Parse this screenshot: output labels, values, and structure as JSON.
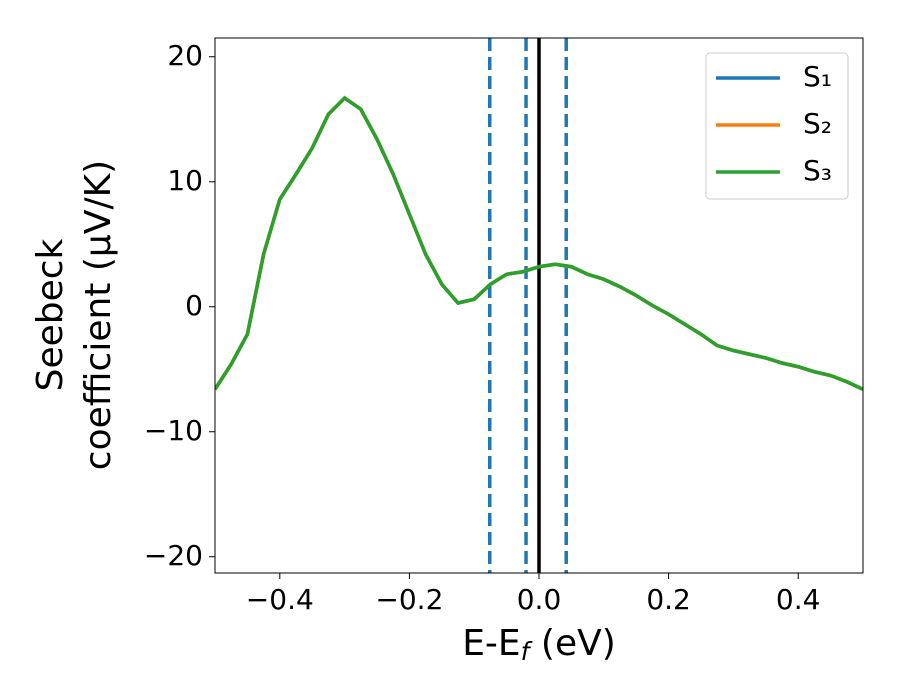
{
  "chart_data": {
    "type": "line",
    "xlabel": [
      "E-E",
      "f",
      " (eV)"
    ],
    "ylabel": [
      "Seebeck",
      "coefficient  (μV/K)"
    ],
    "x": [
      -0.5,
      -0.475,
      -0.45,
      -0.425,
      -0.4,
      -0.375,
      -0.35,
      -0.325,
      -0.3,
      -0.275,
      -0.25,
      -0.225,
      -0.2,
      -0.175,
      -0.15,
      -0.125,
      -0.1,
      -0.075,
      -0.05,
      -0.025,
      0,
      0.025,
      0.05,
      0.075,
      0.1,
      0.125,
      0.15,
      0.175,
      0.2,
      0.225,
      0.25,
      0.275,
      0.3,
      0.325,
      0.35,
      0.375,
      0.4,
      0.425,
      0.45,
      0.475,
      0.5
    ],
    "series": [
      {
        "name": "S₁",
        "color": "#1f77b4",
        "values": [
          -6.6,
          -4.6,
          -2.2,
          4.2,
          8.6,
          10.6,
          12.7,
          15.4,
          16.7,
          15.8,
          13.4,
          10.6,
          7.4,
          4.2,
          1.8,
          0.3,
          0.6,
          1.8,
          2.6,
          2.8,
          3.2,
          3.4,
          3.2,
          2.6,
          2.2,
          1.6,
          0.9,
          0.1,
          -0.6,
          -1.4,
          -2.2,
          -3.1,
          -3.5,
          -3.8,
          -4.1,
          -4.5,
          -4.8,
          -5.2,
          -5.5,
          -6.0,
          -6.6
        ]
      },
      {
        "name": "S₂",
        "color": "#ff7f0e",
        "values": [
          -6.6,
          -4.6,
          -2.2,
          4.2,
          8.6,
          10.6,
          12.7,
          15.4,
          16.7,
          15.8,
          13.4,
          10.6,
          7.4,
          4.2,
          1.8,
          0.3,
          0.6,
          1.8,
          2.6,
          2.8,
          3.2,
          3.4,
          3.2,
          2.6,
          2.2,
          1.6,
          0.9,
          0.1,
          -0.6,
          -1.4,
          -2.2,
          -3.1,
          -3.5,
          -3.8,
          -4.1,
          -4.5,
          -4.8,
          -5.2,
          -5.5,
          -6.0,
          -6.6
        ]
      },
      {
        "name": "S₃",
        "color": "#2ca02c",
        "values": [
          -6.6,
          -4.6,
          -2.2,
          4.2,
          8.6,
          10.6,
          12.7,
          15.4,
          16.7,
          15.8,
          13.4,
          10.6,
          7.4,
          4.2,
          1.8,
          0.3,
          0.6,
          1.8,
          2.6,
          2.8,
          3.2,
          3.4,
          3.2,
          2.6,
          2.2,
          1.6,
          0.9,
          0.1,
          -0.6,
          -1.4,
          -2.2,
          -3.1,
          -3.5,
          -3.8,
          -4.1,
          -4.5,
          -4.8,
          -5.2,
          -5.5,
          -6.0,
          -6.6
        ]
      }
    ],
    "vlines": [
      {
        "x": -0.076,
        "color": "#1f77b4",
        "style": "dashed"
      },
      {
        "x": -0.02,
        "color": "#1f77b4",
        "style": "dashed"
      },
      {
        "x": 0.042,
        "color": "#1f77b4",
        "style": "dashed"
      },
      {
        "x": 0,
        "color": "#000000",
        "style": "solid"
      }
    ],
    "xlim": [
      -0.5,
      0.5
    ],
    "ylim": [
      -21.3,
      21.5
    ],
    "xticks": [
      {
        "value": -0.4,
        "label": "−0.4"
      },
      {
        "value": -0.2,
        "label": "−0.2"
      },
      {
        "value": 0,
        "label": "0.0"
      },
      0.2,
      0.4
    ],
    "yticks": [
      {
        "value": -20,
        "label": "−20"
      },
      {
        "value": -10,
        "label": "−10"
      },
      0,
      10,
      20
    ],
    "legend": "upper right",
    "grid": false
  }
}
